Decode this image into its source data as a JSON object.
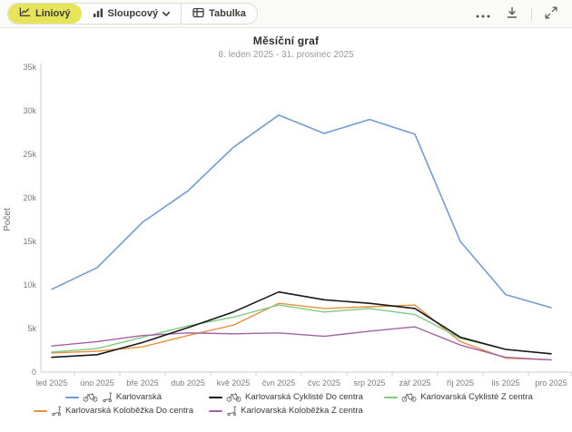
{
  "toolbar": {
    "tabs": [
      {
        "label": "Liniový",
        "icon": "line-chart-icon",
        "active": true
      },
      {
        "label": "Sloupcový",
        "icon": "bar-chart-icon",
        "active": false,
        "has_dropdown": true
      },
      {
        "label": "Tabulka",
        "icon": "table-icon",
        "active": false
      }
    ],
    "actions": [
      {
        "name": "more-options",
        "icon": "ellipsis-icon"
      },
      {
        "name": "download",
        "icon": "download-icon"
      },
      {
        "name": "fullscreen",
        "icon": "fullscreen-icon"
      }
    ]
  },
  "chart_data": {
    "type": "line",
    "title": "Měsíční graf",
    "subtitle": "8. leden 2025 - 31. prosinec 2025",
    "xlabel": "",
    "ylabel": "Počet",
    "ylim": [
      0,
      35000
    ],
    "grid": false,
    "legend_position": "bottom",
    "yticks": [
      {
        "value": 0,
        "label": "0"
      },
      {
        "value": 5000,
        "label": "5k"
      },
      {
        "value": 10000,
        "label": "10k"
      },
      {
        "value": 15000,
        "label": "15k"
      },
      {
        "value": 20000,
        "label": "20k"
      },
      {
        "value": 25000,
        "label": "25k"
      },
      {
        "value": 30000,
        "label": "30k"
      },
      {
        "value": 35000,
        "label": "35k"
      }
    ],
    "categories": [
      "led 2025",
      "úno 2025",
      "bře 2025",
      "dub 2025",
      "kvě 2025",
      "čvn 2025",
      "čvc 2025",
      "srp 2025",
      "zář 2025",
      "říj 2025",
      "lis 2025",
      "pro 2025"
    ],
    "series": [
      {
        "id": "karlovarska",
        "name": "Karlovarská",
        "color": "#6f9cd6",
        "width": 1.6,
        "icons": [
          "bicycle",
          "scooter"
        ],
        "values": [
          9500,
          12000,
          17200,
          20800,
          25800,
          29500,
          27400,
          29000,
          27300,
          15000,
          8900,
          7400
        ]
      },
      {
        "id": "cykliste-do-centra",
        "name": "Karlovarská Cyklisté Do centra",
        "color": "#1a1a1e",
        "width": 1.6,
        "icons": [
          "bicycle"
        ],
        "values": [
          1700,
          2000,
          3400,
          5100,
          6900,
          9200,
          8300,
          7900,
          7300,
          4000,
          2600,
          2100
        ]
      },
      {
        "id": "cykliste-z-centra",
        "name": "Karlovarská Cyklisté Z centra",
        "color": "#7fca80",
        "width": 1.4,
        "icons": [
          "bicycle"
        ],
        "values": [
          2300,
          2700,
          4000,
          5300,
          6300,
          7700,
          6900,
          7300,
          6600,
          3900,
          2600,
          2100
        ]
      },
      {
        "id": "kolobezka-do-centra",
        "name": "Karlovarská Koloběžka Do centra",
        "color": "#e8913c",
        "width": 1.4,
        "icons": [
          "scooter"
        ],
        "values": [
          2200,
          2400,
          2900,
          4200,
          5400,
          7900,
          7300,
          7500,
          7700,
          3500,
          1600,
          1400
        ]
      },
      {
        "id": "kolobezka-z-centra",
        "name": "Karlovarská Koloběžka Z centra",
        "color": "#a262a4",
        "width": 1.4,
        "icons": [
          "scooter"
        ],
        "values": [
          3000,
          3500,
          4200,
          4500,
          4400,
          4500,
          4100,
          4700,
          5200,
          3100,
          1700,
          1400
        ]
      }
    ]
  },
  "colors": {
    "active_tab_bg": "#e6e45a",
    "axis_line": "#cccccc",
    "icon_gray": "#555555",
    "legend_icon_gray": "#6b6b6b"
  }
}
